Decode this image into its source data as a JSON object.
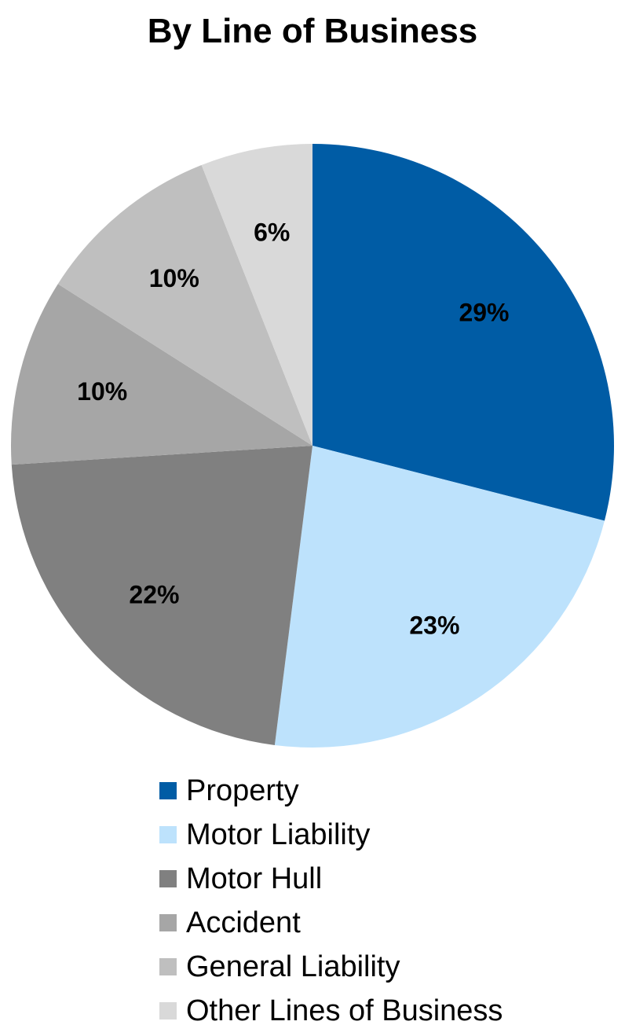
{
  "chart_data": {
    "type": "pie",
    "title": "By Line of Business",
    "slices": [
      {
        "name": "Property",
        "value": 29,
        "label": "29%",
        "color": "#005ca5"
      },
      {
        "name": "Motor Liability",
        "value": 23,
        "label": "23%",
        "color": "#bde2fc"
      },
      {
        "name": "Motor Hull",
        "value": 22,
        "label": "22%",
        "color": "#808080"
      },
      {
        "name": "Accident",
        "value": 10,
        "label": "10%",
        "color": "#a6a6a6"
      },
      {
        "name": "General Liability",
        "value": 10,
        "label": "10%",
        "color": "#bfbfbf"
      },
      {
        "name": "Other Lines of Business",
        "value": 6,
        "label": "6%",
        "color": "#d9d9d9"
      }
    ],
    "legend_position": "bottom"
  }
}
